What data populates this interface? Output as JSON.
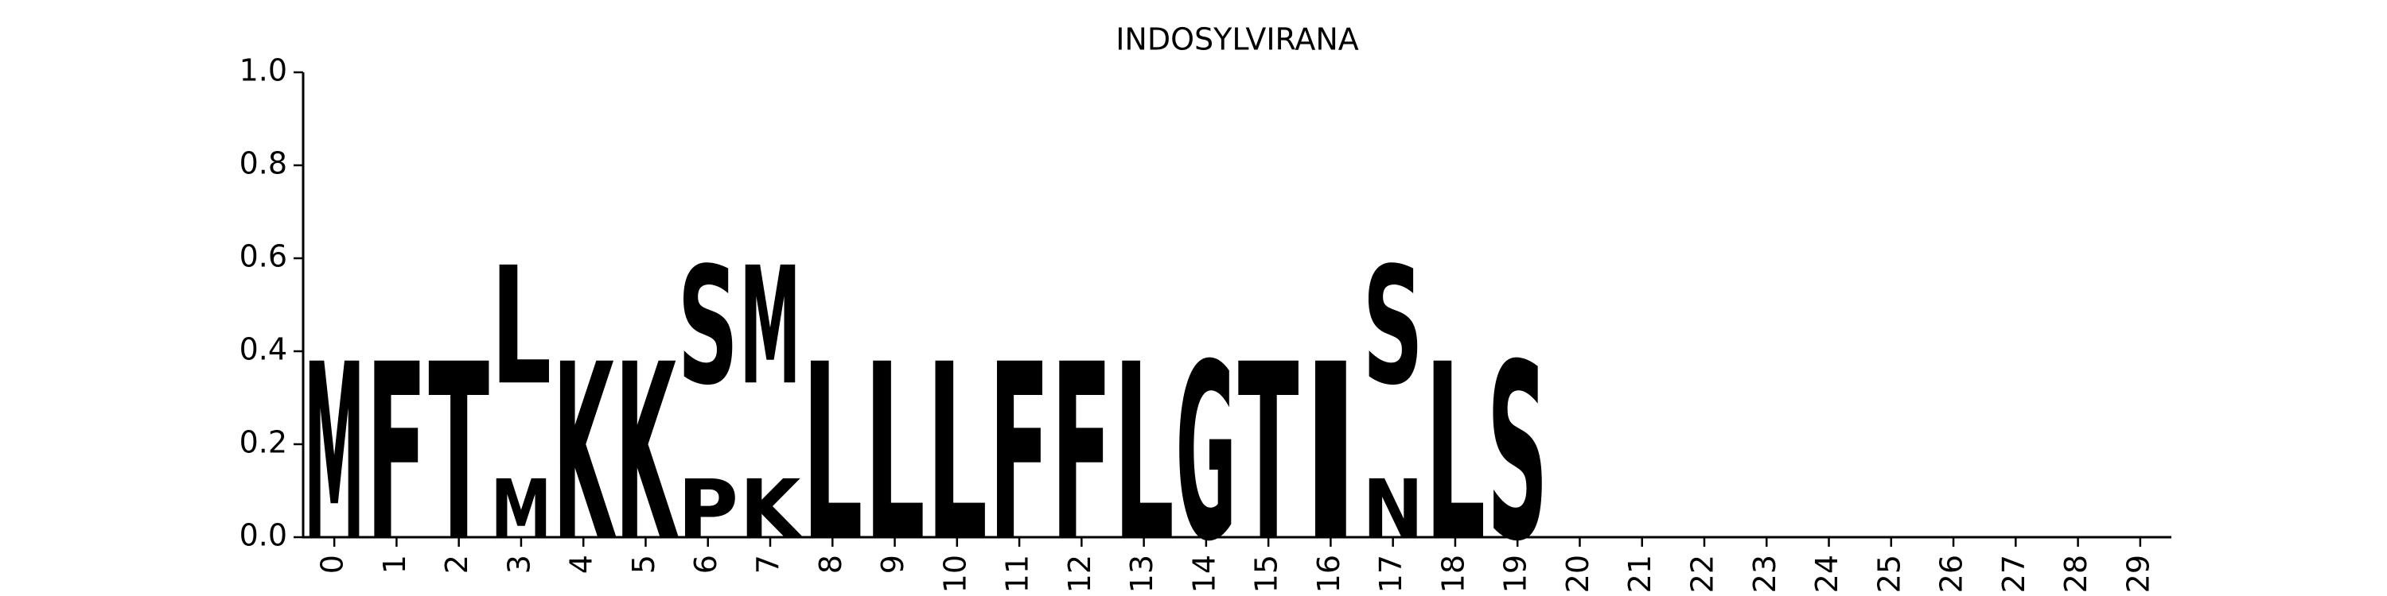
{
  "chart_data": {
    "type": "logo",
    "title": "INDOSYLVIRANA",
    "x": [
      0,
      1,
      2,
      3,
      4,
      5,
      6,
      7,
      8,
      9,
      10,
      11,
      12,
      13,
      14,
      15,
      16,
      17,
      18,
      19,
      20,
      21,
      22,
      23,
      24,
      25,
      26,
      27,
      28,
      29
    ],
    "xlim": [
      -0.5,
      29.5
    ],
    "ylim": [
      0,
      1
    ],
    "yticks": [
      {
        "value": 0,
        "label": "0.0"
      },
      {
        "value": 0.2,
        "label": "0.2"
      },
      {
        "value": 0.4,
        "label": "0.4"
      },
      {
        "value": 0.6,
        "label": "0.6"
      },
      {
        "value": 0.8,
        "label": "0.8"
      },
      {
        "value": 1,
        "label": "1.0"
      }
    ],
    "series": [
      {
        "name": "N",
        "color": "#ffed6f",
        "values": [
          null,
          null,
          null,
          null,
          null,
          null,
          null,
          null,
          null,
          null,
          null,
          null,
          null,
          null,
          null,
          null,
          null,
          0.333,
          null,
          null,
          null,
          null,
          null,
          null,
          null,
          null,
          null,
          null,
          null,
          null
        ]
      },
      {
        "name": "P",
        "color": "#66c2a5",
        "values": [
          null,
          null,
          null,
          null,
          null,
          null,
          0.333,
          null,
          null,
          null,
          null,
          null,
          null,
          null,
          null,
          null,
          null,
          null,
          null,
          null,
          null,
          null,
          null,
          null,
          null,
          null,
          null,
          null,
          null,
          null
        ]
      },
      {
        "name": "K",
        "color": "#d9d9d9",
        "values": [
          null,
          null,
          null,
          null,
          1,
          1,
          null,
          0.333,
          null,
          null,
          null,
          null,
          null,
          null,
          null,
          null,
          null,
          null,
          null,
          null,
          null,
          null,
          null,
          null,
          null,
          null,
          null,
          null,
          null,
          null
        ]
      },
      {
        "name": "M",
        "color": "#ccebc5",
        "values": [
          1,
          null,
          null,
          0.333,
          null,
          null,
          null,
          0.667,
          null,
          null,
          null,
          null,
          null,
          null,
          null,
          null,
          null,
          null,
          null,
          null,
          null,
          null,
          null,
          null,
          null,
          null,
          null,
          null,
          null,
          null
        ]
      },
      {
        "name": "L",
        "color": "#bc80bd",
        "values": [
          null,
          null,
          null,
          0.667,
          null,
          null,
          null,
          null,
          1,
          1,
          1,
          null,
          null,
          1,
          null,
          null,
          null,
          null,
          1,
          null,
          null,
          null,
          null,
          null,
          null,
          null,
          null,
          null,
          null,
          null
        ]
      },
      {
        "name": "S",
        "color": "#b3b3b3",
        "values": [
          null,
          null,
          null,
          null,
          null,
          null,
          0.667,
          null,
          null,
          null,
          null,
          null,
          null,
          null,
          null,
          null,
          null,
          0.667,
          null,
          1,
          null,
          null,
          null,
          null,
          null,
          null,
          null,
          null,
          null,
          null
        ]
      },
      {
        "name": "F",
        "color": "#80b1d3",
        "values": [
          null,
          1,
          null,
          null,
          null,
          null,
          null,
          null,
          null,
          null,
          null,
          1,
          1,
          null,
          null,
          null,
          null,
          null,
          null,
          null,
          null,
          null,
          null,
          null,
          null,
          null,
          null,
          null,
          null,
          null
        ]
      },
      {
        "name": "T",
        "color": "#ffffb3",
        "values": [
          null,
          null,
          1,
          null,
          null,
          null,
          null,
          null,
          null,
          null,
          null,
          null,
          null,
          null,
          null,
          1,
          null,
          null,
          null,
          null,
          null,
          null,
          null,
          null,
          null,
          null,
          null,
          null,
          null,
          null
        ]
      },
      {
        "name": "G",
        "color": "#fdb462",
        "values": [
          null,
          null,
          null,
          null,
          null,
          null,
          null,
          null,
          null,
          null,
          null,
          null,
          null,
          null,
          1,
          null,
          null,
          null,
          null,
          null,
          null,
          null,
          null,
          null,
          null,
          null,
          null,
          null,
          null,
          null
        ]
      },
      {
        "name": "I",
        "color": "#fccde5",
        "values": [
          null,
          null,
          null,
          null,
          null,
          null,
          null,
          null,
          null,
          null,
          null,
          null,
          null,
          null,
          null,
          null,
          1,
          null,
          null,
          null,
          null,
          null,
          null,
          null,
          null,
          null,
          null,
          null,
          null,
          null
        ]
      }
    ]
  }
}
